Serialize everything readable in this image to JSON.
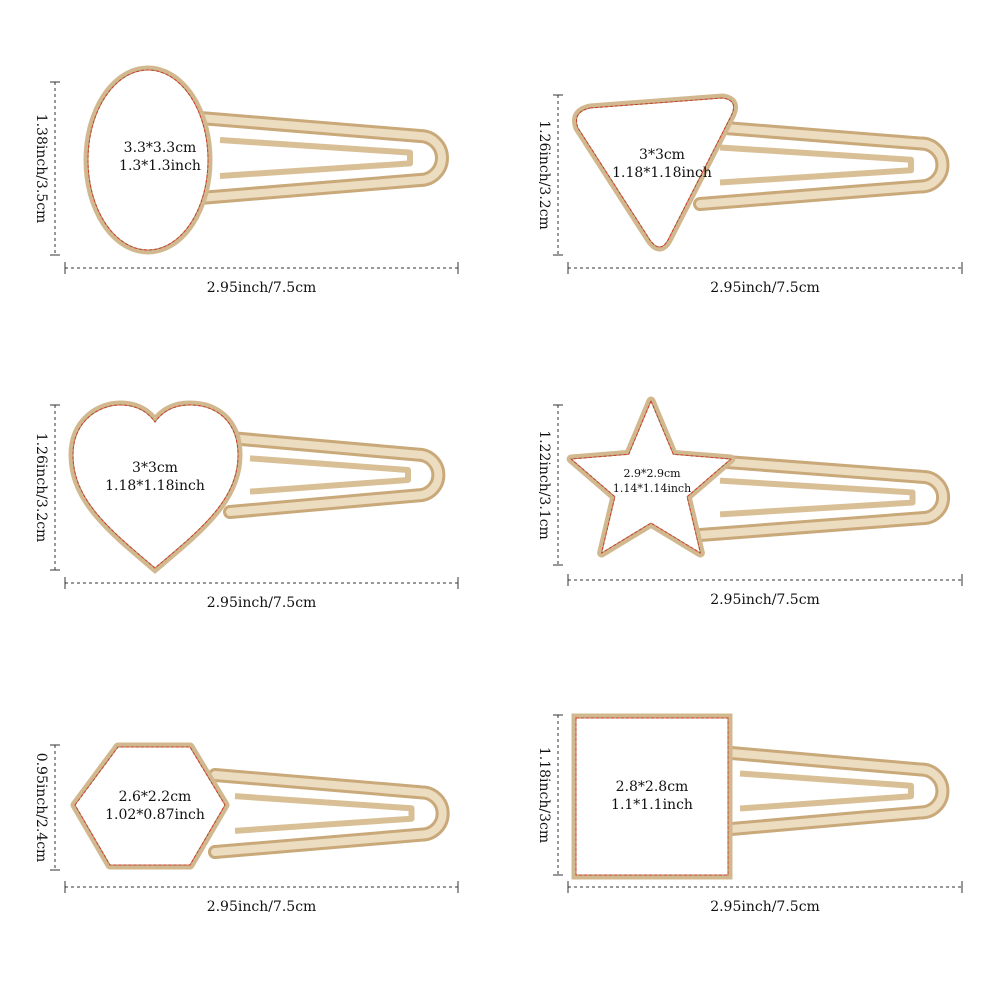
{
  "items": [
    {
      "size_cm": "3.3*3.3cm",
      "size_inch": "1.3*1.3inch",
      "height": "1.38inch/3.5cm",
      "width": "2.95inch/7.5cm"
    },
    {
      "size_cm": "3*3cm",
      "size_inch": "1.18*1.18inch",
      "height": "1.26inch/3.2cm",
      "width": "2.95inch/7.5cm"
    },
    {
      "size_cm": "3*3cm",
      "size_inch": "1.18*1.18inch",
      "height": "1.26inch/3.2cm",
      "width": "2.95inch/7.5cm"
    },
    {
      "size_cm": "2.9*2.9cm",
      "size_inch": "1.14*1.14inch",
      "height": "1.22inch/3.1cm",
      "width": "2.95inch/7.5cm"
    },
    {
      "size_cm": "2.6*2.2cm",
      "size_inch": "1.02*0.87inch",
      "height": "0.95inch/2.4cm",
      "width": "2.95inch/7.5cm"
    },
    {
      "size_cm": "2.8*2.8cm",
      "size_inch": "1.1*1.1inch",
      "height": "1.18inch/3cm",
      "width": "2.95inch/7.5cm"
    }
  ]
}
